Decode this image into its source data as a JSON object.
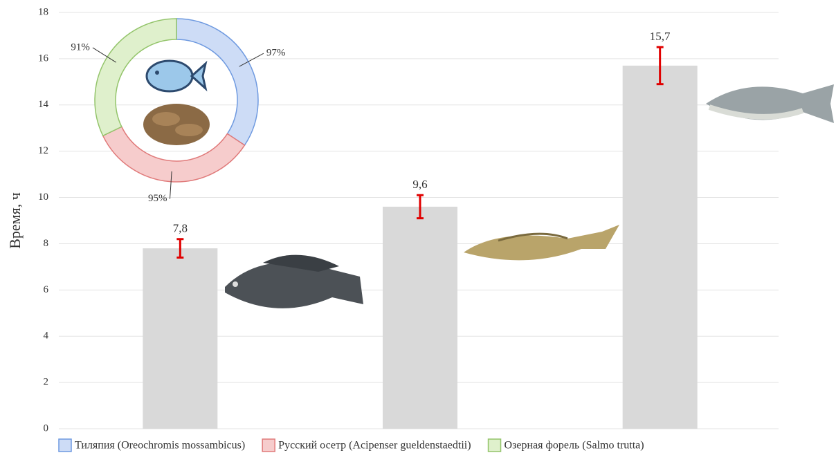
{
  "chart_data": [
    {
      "type": "bar",
      "ylabel": "Время, ч",
      "categories": [
        null,
        null,
        null
      ],
      "values": [
        7.8,
        9.6,
        15.7
      ],
      "value_labels": [
        "7,8",
        "9,6",
        "15,7"
      ],
      "errors": [
        0.4,
        0.5,
        0.8
      ],
      "color": "#d9d9d9",
      "error_color": "#e00000",
      "ylim": [
        0,
        18
      ],
      "yticks": [
        0,
        2,
        4,
        6,
        8,
        10,
        12,
        14,
        16,
        18
      ],
      "grid": true
    },
    {
      "type": "pie",
      "donut": true,
      "categories": [
        "Тиляпия (Oreochromis mossambicus)",
        "Русский осетр (Acipenser gueldenstaedtii)",
        "Озерная форель (Salmo trutta)"
      ],
      "values": [
        97,
        95,
        91
      ],
      "value_labels": [
        "97%",
        "95%",
        "91%"
      ],
      "colors": [
        "#cddcf6",
        "#f6cccc",
        "#dff0cc"
      ],
      "edge_colors": [
        "#6f9ae0",
        "#e07a7a",
        "#93c46a"
      ],
      "legend": "bottom"
    }
  ]
}
